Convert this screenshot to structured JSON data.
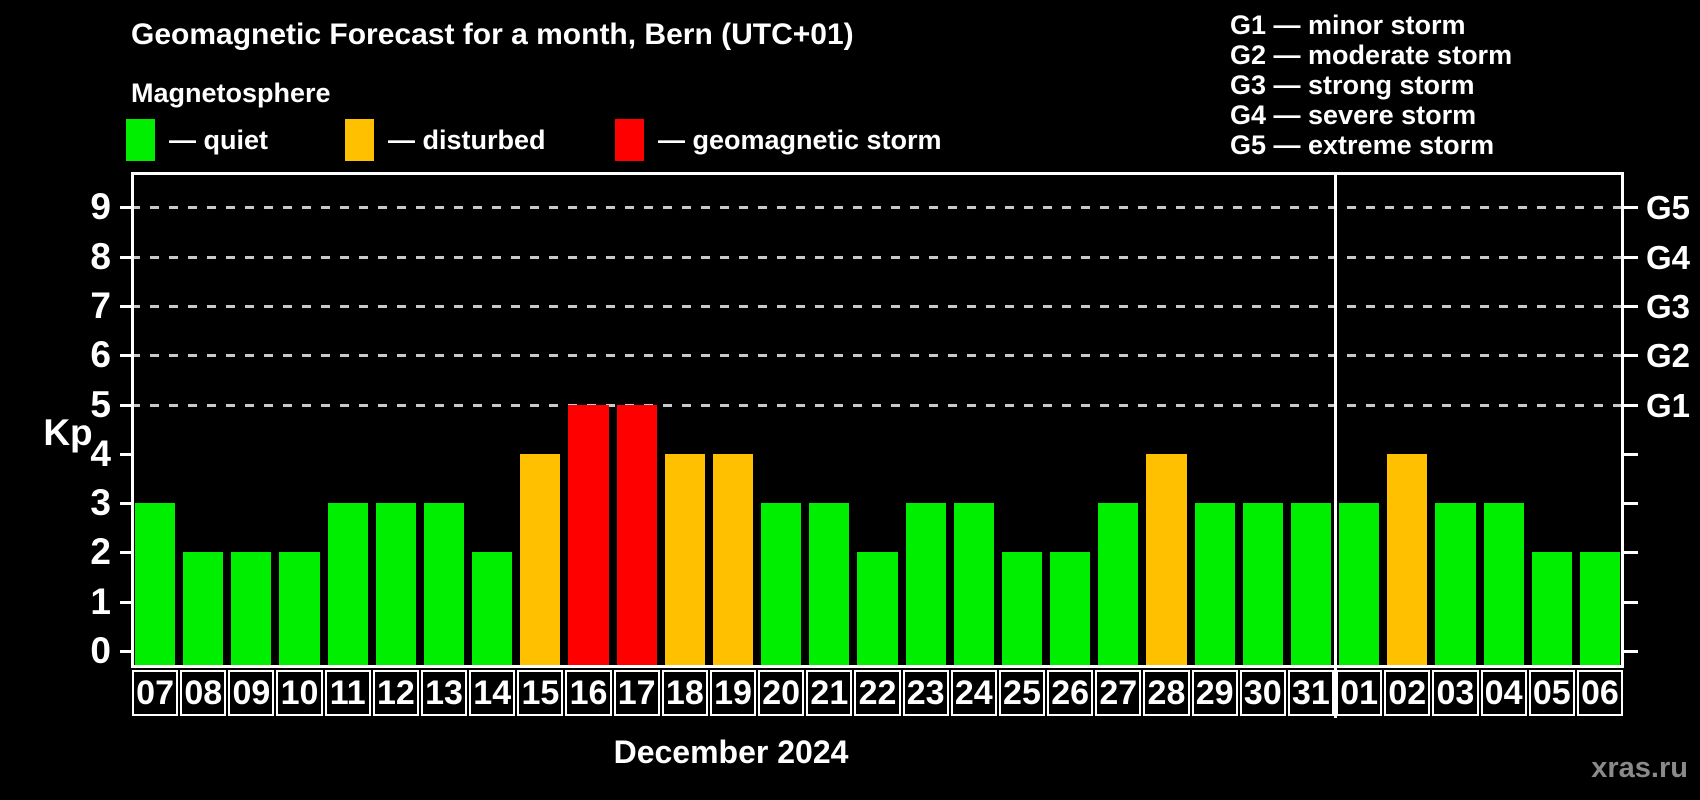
{
  "title": "Geomagnetic Forecast for a month, Bern (UTC+01)",
  "subtitle": "Magnetosphere",
  "legend": {
    "items": [
      {
        "label": "— quiet",
        "level": "quiet",
        "color": "#00ee00"
      },
      {
        "label": "— disturbed",
        "level": "disturbed",
        "color": "#ffc000"
      },
      {
        "label": "— geomagnetic storm",
        "level": "storm",
        "color": "#ff0000"
      }
    ]
  },
  "storm_scale_legend": [
    "G1 — minor storm",
    "G2 — moderate storm",
    "G3 — strong storm",
    "G4 — severe storm",
    "G5 — extreme storm"
  ],
  "watermark": "xras.ru",
  "chart_data": {
    "type": "bar",
    "title": "Geomagnetic Forecast for a month, Bern (UTC+01)",
    "xlabel": "December 2024",
    "ylabel": "Kp",
    "ylim": [
      0,
      9
    ],
    "y_ticks": [
      0,
      1,
      2,
      3,
      4,
      5,
      6,
      7,
      8,
      9
    ],
    "gridlines_at": [
      5,
      6,
      7,
      8,
      9
    ],
    "grid": "dashed horizontal at storm levels only",
    "right_axis_labels": [
      {
        "label": "G1",
        "kp": 5
      },
      {
        "label": "G2",
        "kp": 6
      },
      {
        "label": "G3",
        "kp": 7
      },
      {
        "label": "G4",
        "kp": 8
      },
      {
        "label": "G5",
        "kp": 9
      }
    ],
    "level_colors": {
      "quiet": "#00ee00",
      "disturbed": "#ffc000",
      "storm": "#ff0000"
    },
    "month_boundary_index": 25,
    "series": [
      {
        "day": "07",
        "kp": 3,
        "level": "quiet"
      },
      {
        "day": "08",
        "kp": 2,
        "level": "quiet"
      },
      {
        "day": "09",
        "kp": 2,
        "level": "quiet"
      },
      {
        "day": "10",
        "kp": 2,
        "level": "quiet"
      },
      {
        "day": "11",
        "kp": 3,
        "level": "quiet"
      },
      {
        "day": "12",
        "kp": 3,
        "level": "quiet"
      },
      {
        "day": "13",
        "kp": 3,
        "level": "quiet"
      },
      {
        "day": "14",
        "kp": 2,
        "level": "quiet"
      },
      {
        "day": "15",
        "kp": 4,
        "level": "disturbed"
      },
      {
        "day": "16",
        "kp": 5,
        "level": "storm"
      },
      {
        "day": "17",
        "kp": 5,
        "level": "storm"
      },
      {
        "day": "18",
        "kp": 4,
        "level": "disturbed"
      },
      {
        "day": "19",
        "kp": 4,
        "level": "disturbed"
      },
      {
        "day": "20",
        "kp": 3,
        "level": "quiet"
      },
      {
        "day": "21",
        "kp": 3,
        "level": "quiet"
      },
      {
        "day": "22",
        "kp": 2,
        "level": "quiet"
      },
      {
        "day": "23",
        "kp": 3,
        "level": "quiet"
      },
      {
        "day": "24",
        "kp": 3,
        "level": "quiet"
      },
      {
        "day": "25",
        "kp": 2,
        "level": "quiet"
      },
      {
        "day": "26",
        "kp": 2,
        "level": "quiet"
      },
      {
        "day": "27",
        "kp": 3,
        "level": "quiet"
      },
      {
        "day": "28",
        "kp": 4,
        "level": "disturbed"
      },
      {
        "day": "29",
        "kp": 3,
        "level": "quiet"
      },
      {
        "day": "30",
        "kp": 3,
        "level": "quiet"
      },
      {
        "day": "31",
        "kp": 3,
        "level": "quiet"
      },
      {
        "day": "01",
        "kp": 3,
        "level": "quiet"
      },
      {
        "day": "02",
        "kp": 4,
        "level": "disturbed"
      },
      {
        "day": "03",
        "kp": 3,
        "level": "quiet"
      },
      {
        "day": "04",
        "kp": 3,
        "level": "quiet"
      },
      {
        "day": "05",
        "kp": 2,
        "level": "quiet"
      },
      {
        "day": "06",
        "kp": 2,
        "level": "quiet"
      }
    ]
  }
}
